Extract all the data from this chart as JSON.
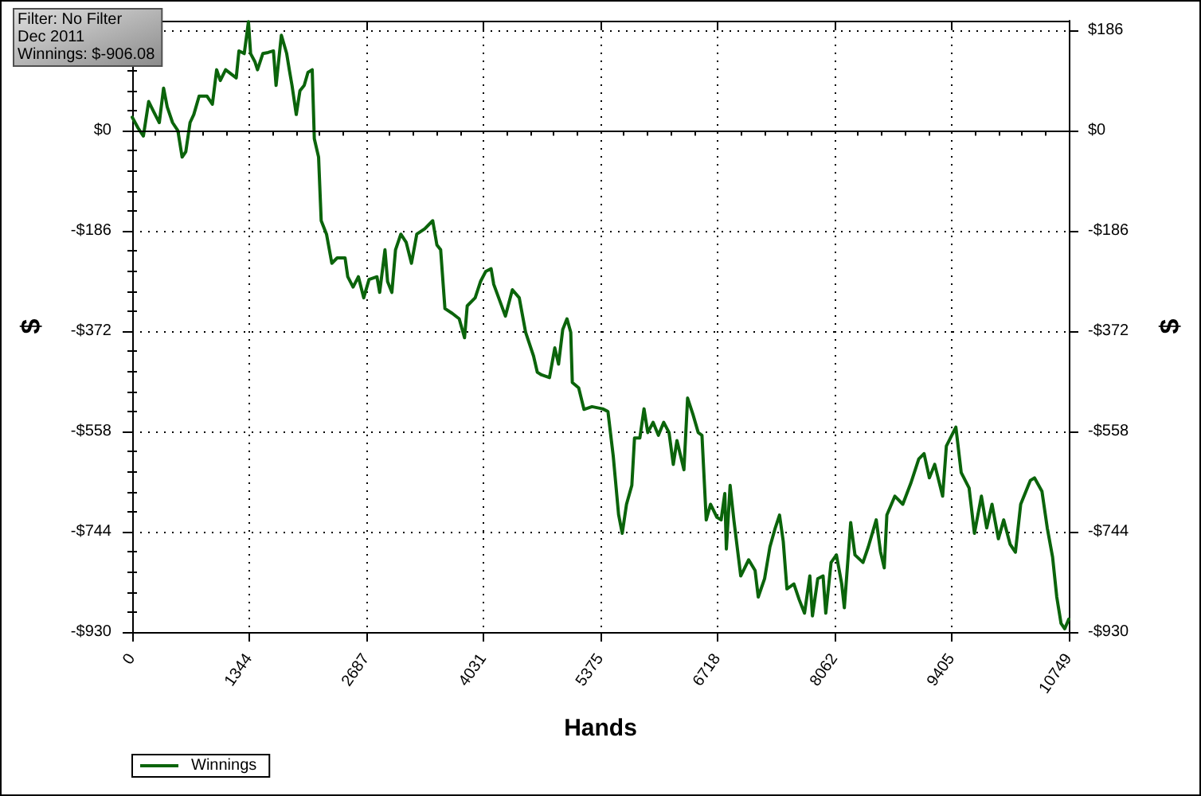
{
  "chart_data": {
    "type": "line",
    "xlabel": "Hands",
    "ylabel": "$",
    "y2label": "$",
    "annotations": [
      "Filter: No Filter",
      "Dec 2011",
      "Winnings: $-906.08"
    ],
    "x": [
      0,
      67,
      128,
      189,
      250,
      311,
      360,
      402,
      463,
      524,
      573,
      615,
      664,
      707,
      768,
      859,
      920,
      969,
      1011,
      1072,
      1194,
      1225,
      1286,
      1334,
      1359,
      1408,
      1438,
      1499,
      1560,
      1621,
      1651,
      1712,
      1773,
      1803,
      1834,
      1883,
      1925,
      1974,
      2017,
      2066,
      2090,
      2139,
      2169,
      2230,
      2291,
      2352,
      2443,
      2474,
      2535,
      2596,
      2657,
      2718,
      2809,
      2840,
      2901,
      2931,
      2980,
      3022,
      3083,
      3144,
      3205,
      3266,
      3358,
      3449,
      3497,
      3540,
      3589,
      3674,
      3753,
      3814,
      3845,
      3936,
      3997,
      4058,
      4119,
      4149,
      4283,
      4363,
      4442,
      4515,
      4606,
      4649,
      4698,
      4789,
      4850,
      4893,
      4941,
      4990,
      5033,
      5051,
      5124,
      5185,
      5277,
      5399,
      5460,
      5521,
      5582,
      5624,
      5673,
      5734,
      5765,
      5826,
      5874,
      5917,
      5978,
      6039,
      6100,
      6161,
      6210,
      6252,
      6332,
      6374,
      6435,
      6496,
      6539,
      6588,
      6637,
      6710,
      6759,
      6801,
      6819,
      6862,
      6905,
      6984,
      7075,
      7149,
      7185,
      7258,
      7319,
      7380,
      7429,
      7472,
      7514,
      7594,
      7655,
      7716,
      7777,
      7807,
      7868,
      7929,
      7960,
      8021,
      8082,
      8143,
      8173,
      8246,
      8295,
      8387,
      8448,
      8539,
      8588,
      8631,
      8661,
      8753,
      8844,
      8936,
      9027,
      9088,
      9149,
      9210,
      9301,
      9344,
      9453,
      9514,
      9605,
      9666,
      9746,
      9807,
      9868,
      9941,
      10002,
      10075,
      10136,
      10197,
      10307,
      10355,
      10441,
      10502,
      10563,
      10611,
      10660,
      10702,
      10749
    ],
    "series": [
      {
        "name": "Winnings",
        "color": "#0b640b",
        "values": [
          25,
          5,
          -10,
          54,
          34,
          15,
          79,
          44,
          15,
          0,
          -49,
          -39,
          15,
          30,
          64,
          64,
          49,
          113,
          93,
          113,
          98,
          148,
          143,
          202,
          143,
          128,
          113,
          143,
          145,
          148,
          84,
          177,
          143,
          113,
          84,
          30,
          74,
          84,
          108,
          113,
          -15,
          -49,
          -167,
          -192,
          -246,
          -236,
          -236,
          -271,
          -290,
          -271,
          -310,
          -276,
          -271,
          -300,
          -221,
          -280,
          -300,
          -221,
          -192,
          -207,
          -246,
          -192,
          -182,
          -167,
          -212,
          -221,
          -330,
          -339,
          -349,
          -384,
          -325,
          -310,
          -280,
          -261,
          -256,
          -285,
          -344,
          -295,
          -310,
          -374,
          -418,
          -448,
          -453,
          -458,
          -403,
          -433,
          -369,
          -349,
          -374,
          -467,
          -477,
          -517,
          -512,
          -516,
          -521,
          -604,
          -712,
          -747,
          -693,
          -658,
          -570,
          -570,
          -516,
          -560,
          -541,
          -565,
          -541,
          -560,
          -619,
          -575,
          -629,
          -496,
          -526,
          -560,
          -565,
          -722,
          -693,
          -717,
          -722,
          -673,
          -776,
          -658,
          -722,
          -826,
          -796,
          -816,
          -865,
          -831,
          -772,
          -737,
          -713,
          -762,
          -850,
          -841,
          -870,
          -895,
          -826,
          -900,
          -831,
          -826,
          -895,
          -801,
          -787,
          -841,
          -885,
          -727,
          -787,
          -801,
          -772,
          -722,
          -781,
          -811,
          -713,
          -678,
          -693,
          -654,
          -609,
          -599,
          -644,
          -619,
          -678,
          -585,
          -550,
          -634,
          -663,
          -747,
          -678,
          -737,
          -693,
          -757,
          -722,
          -767,
          -782,
          -693,
          -649,
          -644,
          -669,
          -737,
          -791,
          -865,
          -914,
          -924,
          -906
        ]
      }
    ],
    "xlim": [
      0,
      10749
    ],
    "xticks": [
      0,
      1344,
      2687,
      4031,
      5375,
      6718,
      8062,
      9405,
      10749
    ],
    "ylim": [
      -930,
      204
    ],
    "yticks": [
      {
        "value": -930,
        "label": "-$930"
      },
      {
        "value": -744,
        "label": "-$744"
      },
      {
        "value": -558,
        "label": "-$558"
      },
      {
        "value": -372,
        "label": "-$372"
      },
      {
        "value": -186,
        "label": "-$186"
      },
      {
        "value": 0,
        "label": "$0"
      },
      {
        "value": 186,
        "label": null
      }
    ],
    "y2lim": [
      -930,
      204
    ],
    "y2ticks": [
      {
        "value": -930,
        "label": "-$930"
      },
      {
        "value": -744,
        "label": "-$744"
      },
      {
        "value": -558,
        "label": "-$558"
      },
      {
        "value": -372,
        "label": "-$372"
      },
      {
        "value": -186,
        "label": "-$186"
      },
      {
        "value": 0,
        "label": "$0"
      },
      {
        "value": 186,
        "label": "$186"
      }
    ],
    "ref_lines": [
      {
        "axis": "y",
        "value": 0,
        "color": "#000000",
        "line_style": "solid"
      }
    ],
    "grid": true,
    "legend": "bottom left",
    "marker": "none",
    "line_style": "solid"
  }
}
